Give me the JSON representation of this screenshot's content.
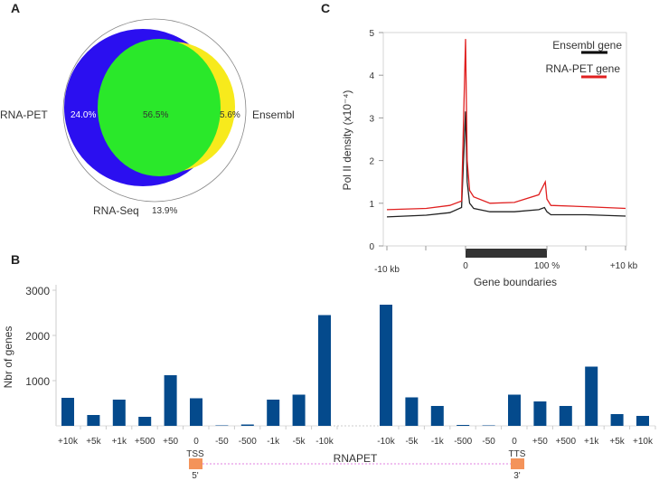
{
  "panels": {
    "a": "A",
    "b": "B",
    "c": "C"
  },
  "chart_data": [
    {
      "type": "venn",
      "panel": "A",
      "sets": [
        "RNA-PET",
        "Ensembl",
        "RNA-Seq"
      ],
      "regions": {
        "rna_pet_only": "24.0%",
        "overlap": "56.5%",
        "ensembl_only": "5.6%",
        "rna_seq_only": "13.9%"
      },
      "colors": {
        "rna_pet": "#2b0ff0",
        "overlap": "#2ae82a",
        "ensembl": "#f7ea1c",
        "outline": "#888888"
      }
    },
    {
      "type": "line",
      "panel": "C",
      "ylabel": "Pol II density (x10⁻⁴)",
      "xlabel": "Gene boundaries",
      "x_tick_labels": [
        "-10 kb",
        "0",
        "100 %",
        "+10 kb"
      ],
      "y_ticks": [
        0,
        1,
        2,
        3,
        4,
        5
      ],
      "ylim": [
        0,
        5
      ],
      "legend_position": "top-right",
      "series": [
        {
          "name": "Ensembl gene",
          "color": "#222222",
          "points": [
            {
              "region": "upstream_kb",
              "x": -10,
              "y": 0.68
            },
            {
              "region": "upstream_kb",
              "x": -5,
              "y": 0.72
            },
            {
              "region": "upstream_kb",
              "x": -2,
              "y": 0.78
            },
            {
              "region": "upstream_kb",
              "x": -0.5,
              "y": 0.9
            },
            {
              "region": "body_pct",
              "x": 0,
              "y": 3.15
            },
            {
              "region": "body_pct",
              "x": 2,
              "y": 1.5
            },
            {
              "region": "body_pct",
              "x": 5,
              "y": 1.0
            },
            {
              "region": "body_pct",
              "x": 10,
              "y": 0.88
            },
            {
              "region": "body_pct",
              "x": 30,
              "y": 0.8
            },
            {
              "region": "body_pct",
              "x": 60,
              "y": 0.8
            },
            {
              "region": "body_pct",
              "x": 90,
              "y": 0.85
            },
            {
              "region": "body_pct",
              "x": 97,
              "y": 0.9
            },
            {
              "region": "body_pct",
              "x": 100,
              "y": 0.8
            },
            {
              "region": "downstream_kb",
              "x": 0.5,
              "y": 0.73
            },
            {
              "region": "downstream_kb",
              "x": 5,
              "y": 0.73
            },
            {
              "region": "downstream_kb",
              "x": 10,
              "y": 0.7
            }
          ]
        },
        {
          "name": "RNA-PET gene",
          "color": "#e02020",
          "points": [
            {
              "region": "upstream_kb",
              "x": -10,
              "y": 0.85
            },
            {
              "region": "upstream_kb",
              "x": -5,
              "y": 0.88
            },
            {
              "region": "upstream_kb",
              "x": -2,
              "y": 0.95
            },
            {
              "region": "upstream_kb",
              "x": -0.5,
              "y": 1.05
            },
            {
              "region": "body_pct",
              "x": 0,
              "y": 4.85
            },
            {
              "region": "body_pct",
              "x": 2,
              "y": 2.0
            },
            {
              "region": "body_pct",
              "x": 5,
              "y": 1.3
            },
            {
              "region": "body_pct",
              "x": 10,
              "y": 1.15
            },
            {
              "region": "body_pct",
              "x": 30,
              "y": 1.0
            },
            {
              "region": "body_pct",
              "x": 60,
              "y": 1.02
            },
            {
              "region": "body_pct",
              "x": 90,
              "y": 1.2
            },
            {
              "region": "body_pct",
              "x": 98,
              "y": 1.5
            },
            {
              "region": "body_pct",
              "x": 100,
              "y": 1.1
            },
            {
              "region": "downstream_kb",
              "x": 0.5,
              "y": 0.95
            },
            {
              "region": "downstream_kb",
              "x": 5,
              "y": 0.92
            },
            {
              "region": "downstream_kb",
              "x": 10,
              "y": 0.88
            }
          ]
        }
      ]
    },
    {
      "type": "bar",
      "panel": "B",
      "ylabel": "Nbr of genes",
      "ylim": [
        0,
        3000
      ],
      "y_ticks": [
        1000,
        2000,
        3000
      ],
      "bar_color": "#044a8c",
      "groups": [
        {
          "anchor": "TSS",
          "end": "5'",
          "categories": [
            "+10k",
            "+5k",
            "+1k",
            "+500",
            "+50",
            "0",
            "-50",
            "-500",
            "-1k",
            "-5k",
            "-10k"
          ],
          "values": [
            620,
            240,
            580,
            200,
            1120,
            610,
            10,
            30,
            580,
            690,
            2450
          ]
        },
        {
          "anchor": "TTS",
          "end": "3'",
          "categories": [
            "-10k",
            "-5k",
            "-1k",
            "-500",
            "-50",
            "0",
            "+50",
            "+500",
            "+1k",
            "+5k",
            "+10k"
          ],
          "values": [
            2680,
            630,
            440,
            20,
            10,
            690,
            540,
            440,
            1310,
            260,
            220
          ]
        }
      ],
      "gene_label": "RNAPET",
      "marker_color": "#f4935a"
    }
  ]
}
